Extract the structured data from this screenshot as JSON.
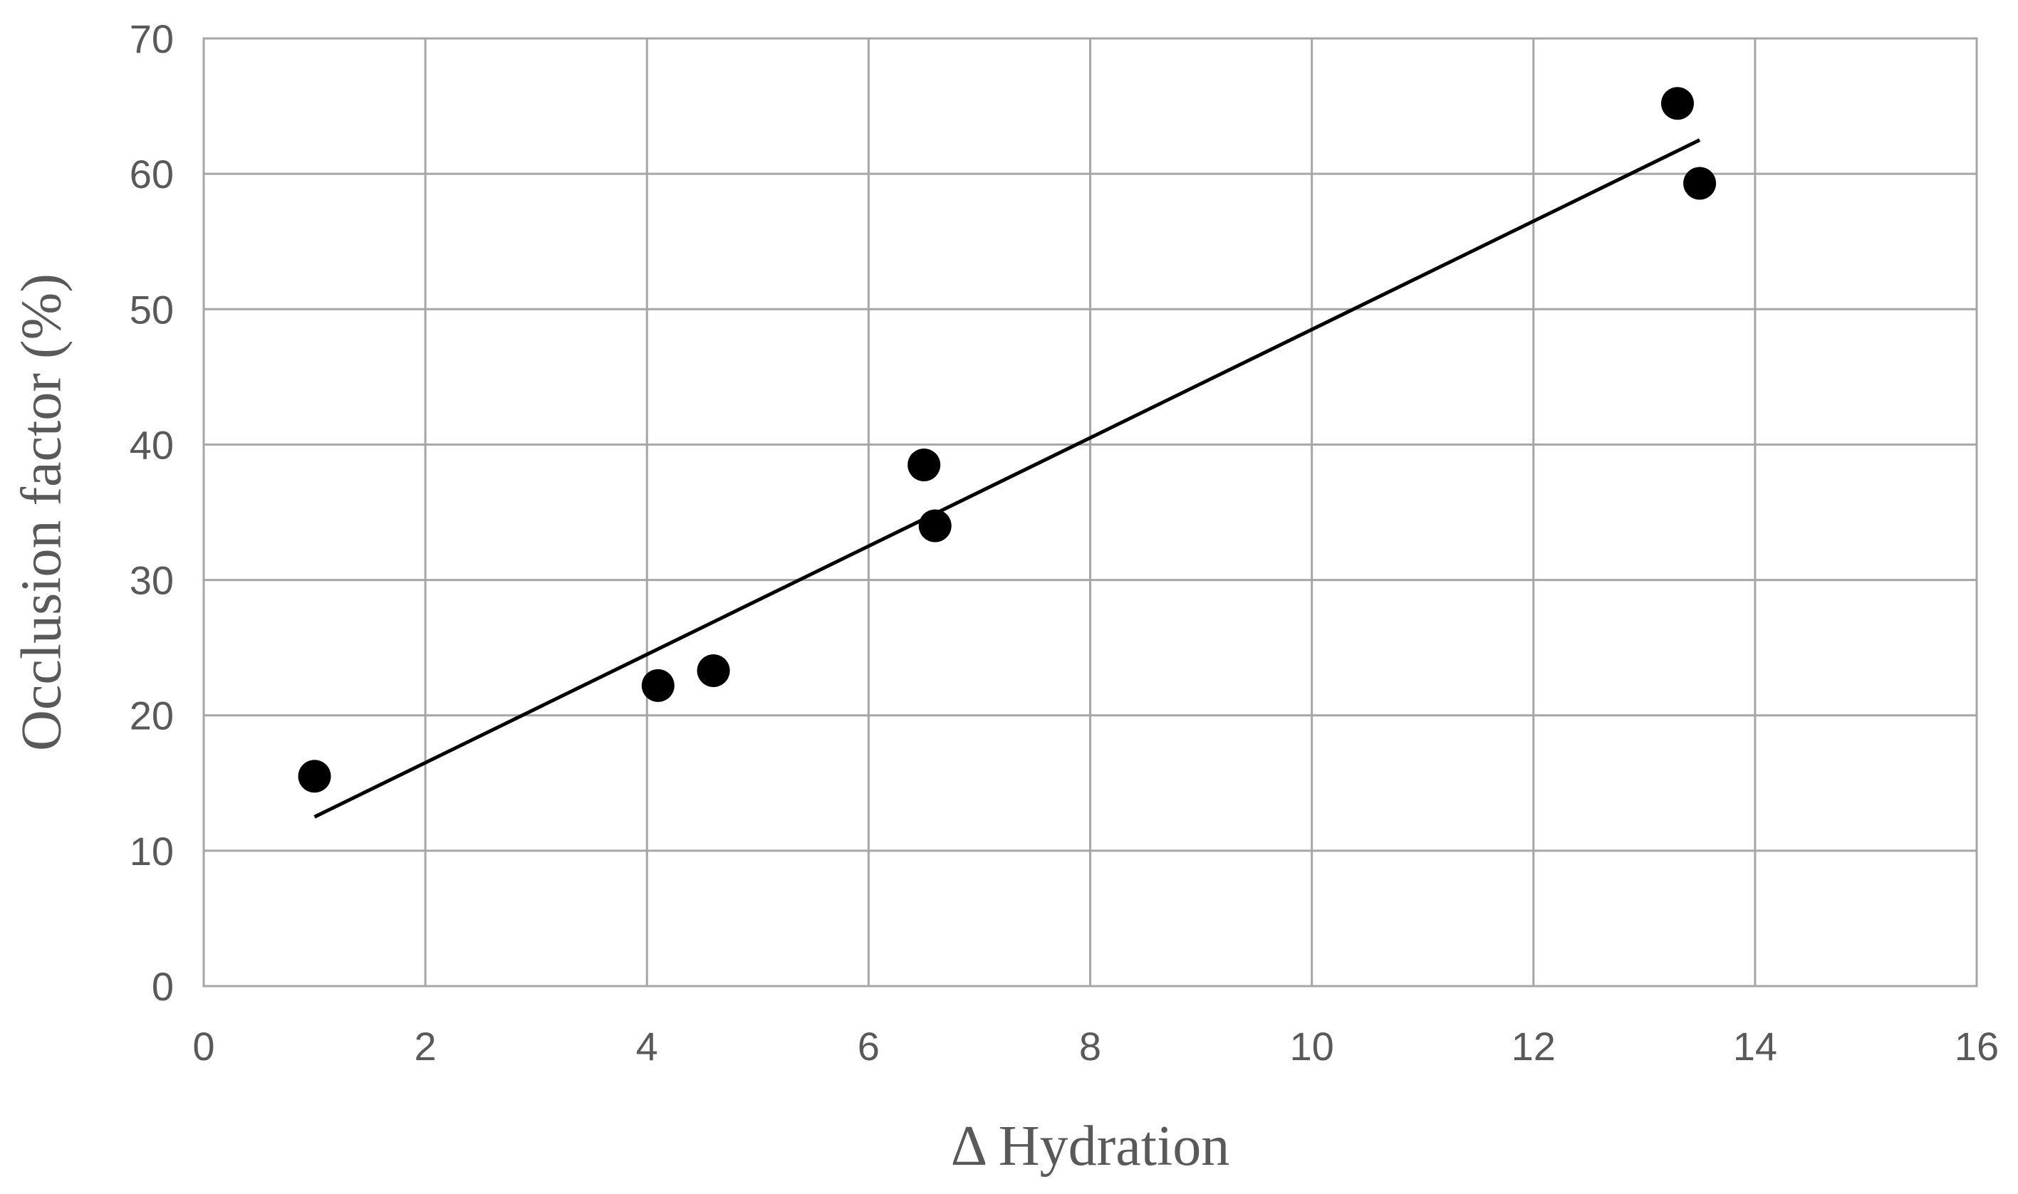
{
  "chart_data": {
    "type": "scatter",
    "title": "",
    "xlabel": "Δ Hydration",
    "ylabel": "Occlusion factor (%)",
    "xlim": [
      0,
      16
    ],
    "ylim": [
      0,
      70
    ],
    "xticks": [
      "0",
      "2",
      "4",
      "6",
      "8",
      "10",
      "12",
      "14",
      "16"
    ],
    "yticks": [
      "0",
      "10",
      "20",
      "30",
      "40",
      "50",
      "60",
      "70"
    ],
    "grid": true,
    "legend": "none",
    "series": [
      {
        "points": [
          {
            "x": 1.0,
            "y": 15.5
          },
          {
            "x": 4.1,
            "y": 22.2
          },
          {
            "x": 4.6,
            "y": 23.3
          },
          {
            "x": 6.5,
            "y": 38.5
          },
          {
            "x": 6.6,
            "y": 34.0
          },
          {
            "x": 13.3,
            "y": 65.2
          },
          {
            "x": 13.5,
            "y": 59.3
          }
        ],
        "color": "#000000"
      }
    ],
    "trendline": {
      "type": "linear",
      "x_range": [
        1.0,
        13.5
      ],
      "y_values": [
        12.5,
        62.5
      ],
      "color": "#000000"
    }
  }
}
